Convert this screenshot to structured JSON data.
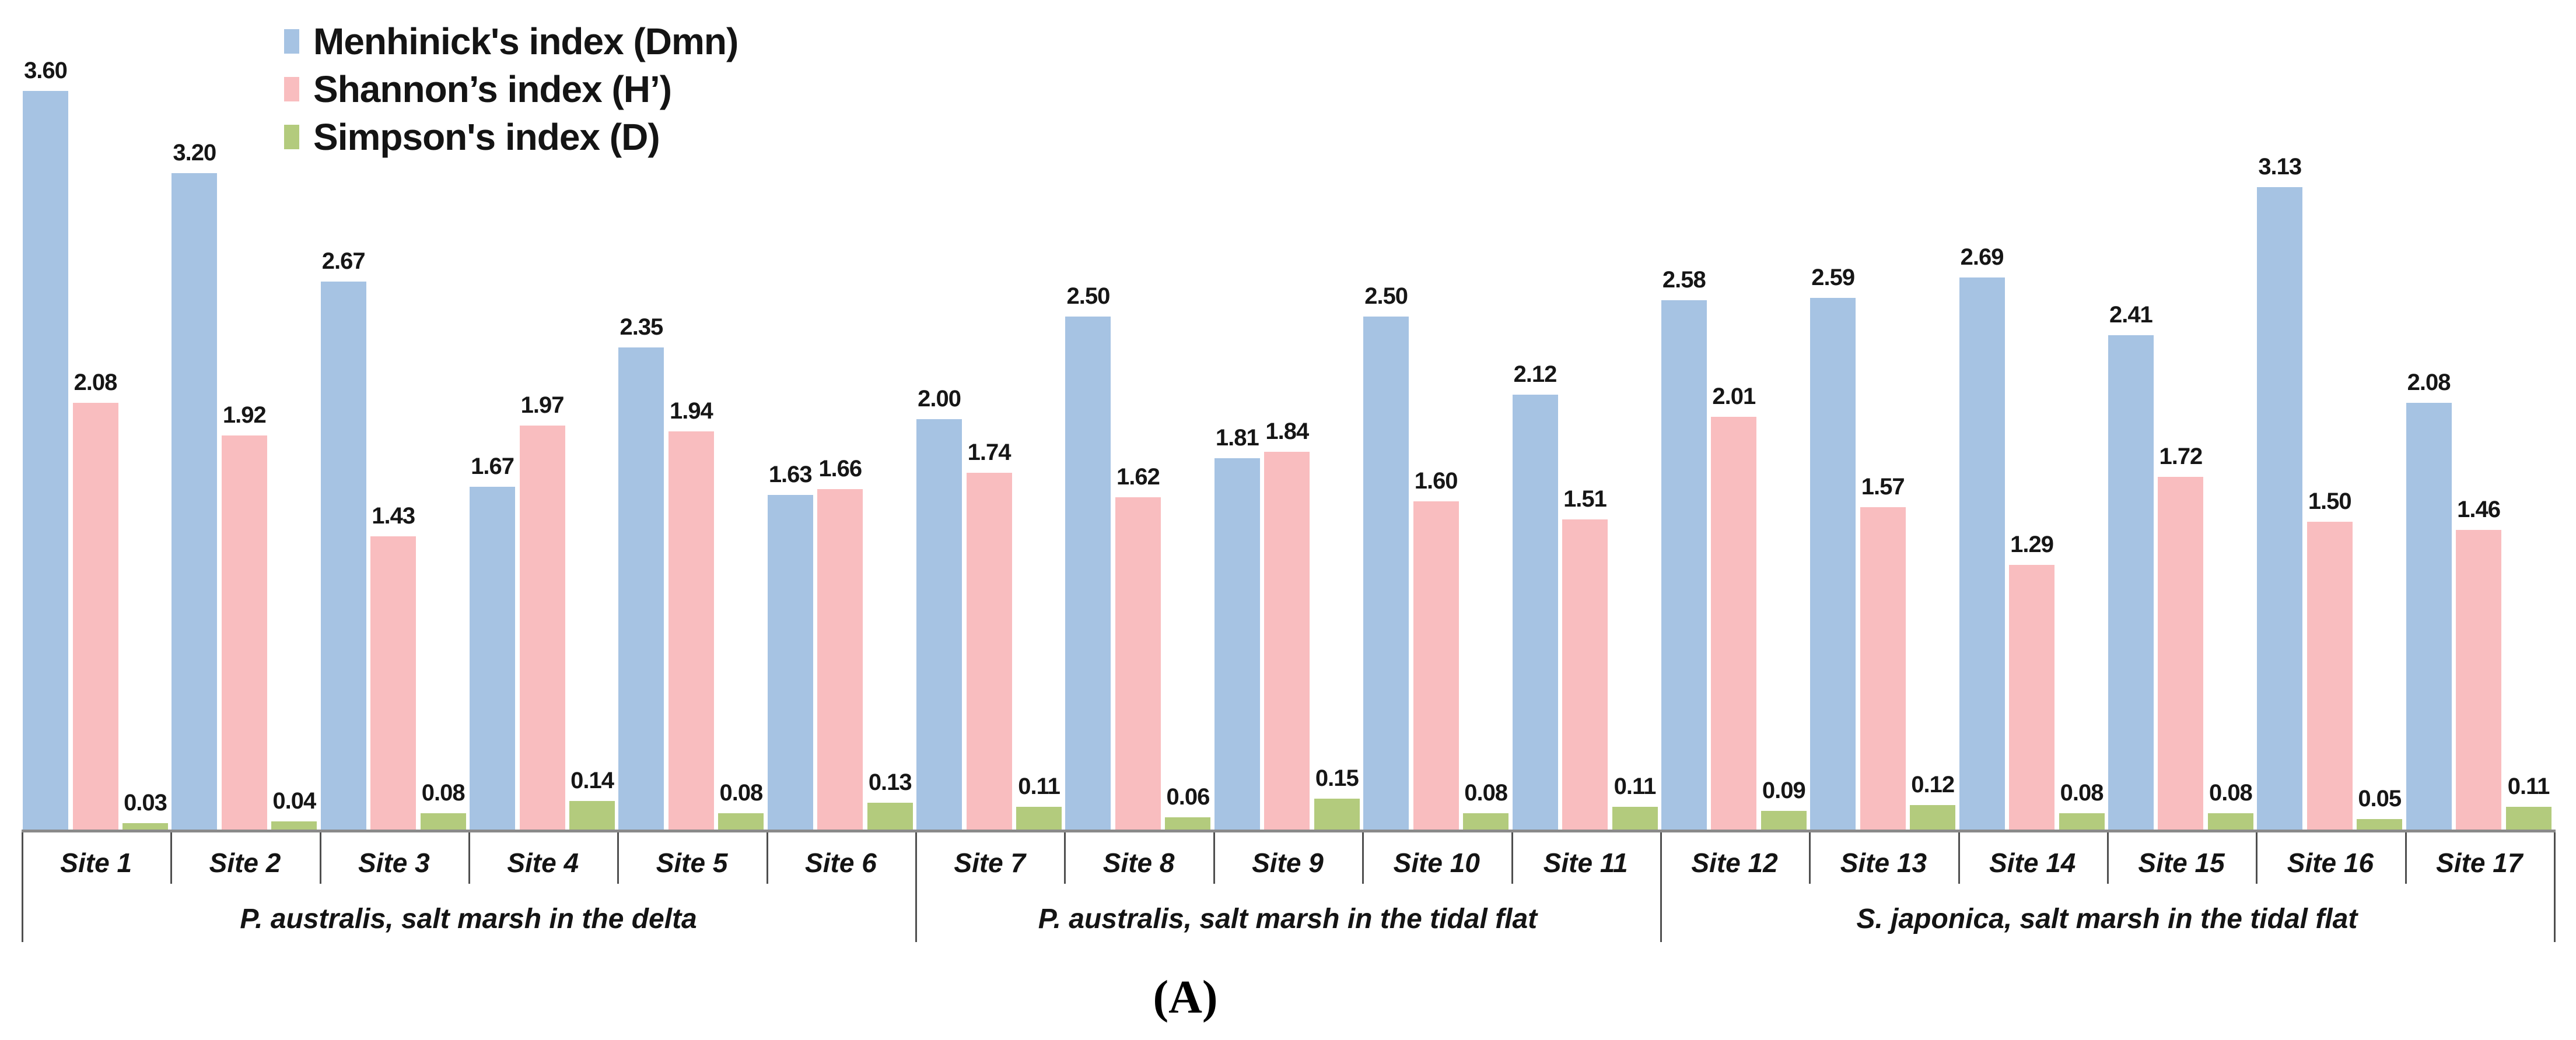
{
  "figure": {
    "caption": "(A)"
  },
  "legend": {
    "position": "top-left",
    "items": [
      {
        "name": "menhinick",
        "label": "Menhinick's index (Dmn)",
        "color": "#a6c3e3"
      },
      {
        "name": "shannon",
        "label": "Shannon’s index (H’)",
        "color": "#f9bdbf"
      },
      {
        "name": "simpson",
        "label": "Simpson's index (D)",
        "color": "#b3cb7d"
      }
    ]
  },
  "chart_data": {
    "type": "bar",
    "title": "",
    "xlabel": "",
    "ylabel": "",
    "ylim": [
      0,
      3.8
    ],
    "grid": false,
    "axis_visible": "x-only",
    "legend_position": "top-left",
    "value_labels": "every bar, 2 decimal places",
    "caption": "(A)",
    "categories": [
      "Site 1",
      "Site 2",
      "Site 3",
      "Site 4",
      "Site 5",
      "Site 6",
      "Site 7",
      "Site 8",
      "Site 9",
      "Site 10",
      "Site 11",
      "Site 12",
      "Site 13",
      "Site 14",
      "Site 15",
      "Site 16",
      "Site 17"
    ],
    "series": [
      {
        "name": "Menhinick's index (Dmn)",
        "color": "#a6c3e3",
        "values": [
          3.6,
          3.2,
          2.67,
          1.67,
          2.35,
          1.63,
          2.0,
          2.5,
          1.81,
          2.5,
          2.12,
          2.58,
          2.59,
          2.69,
          2.41,
          3.13,
          2.08
        ]
      },
      {
        "name": "Shannon’s index (H’)",
        "color": "#f9bdbf",
        "values": [
          2.08,
          1.92,
          1.43,
          1.97,
          1.94,
          1.66,
          1.74,
          1.62,
          1.84,
          1.6,
          1.51,
          2.01,
          1.57,
          1.29,
          1.72,
          1.5,
          1.46
        ]
      },
      {
        "name": "Simpson's index (D)",
        "color": "#b3cb7d",
        "values": [
          0.03,
          0.04,
          0.08,
          0.14,
          0.08,
          0.13,
          0.11,
          0.06,
          0.15,
          0.08,
          0.11,
          0.09,
          0.12,
          0.08,
          0.08,
          0.05,
          0.11
        ]
      }
    ],
    "groups": [
      {
        "label": "P. australis, salt marsh  in the delta",
        "start": 0,
        "end": 5
      },
      {
        "label": "P. australis, salt marsh in the tidal flat",
        "start": 6,
        "end": 10
      },
      {
        "label": "S. japonica, salt marsh in the tidal flat",
        "start": 11,
        "end": 16
      }
    ]
  }
}
